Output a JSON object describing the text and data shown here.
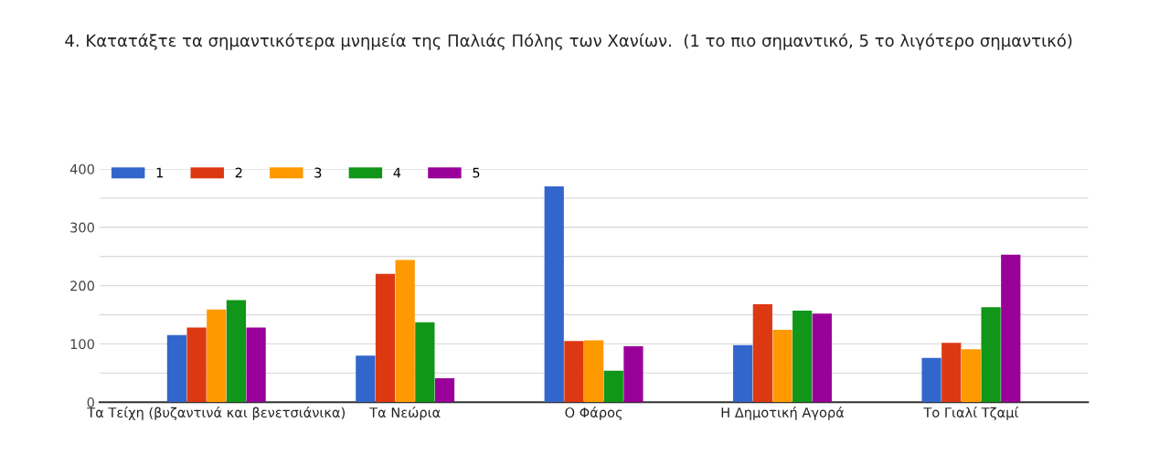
{
  "chart_data": {
    "type": "bar",
    "title": "4. Κατατάξτε τα σημαντικότερα μνημεία της Παλιάς Πόλης των Χανίων.  (1 το πιο σημαντικό, 5 το λιγότερο σημαντικό)",
    "categories": [
      "Τα Τείχη (βυζαντινά και βενετσιάνικα)",
      "Τα Νεώρια",
      "Ο Φάρος",
      "Η Δημοτική Αγορά",
      "Το Γιαλί Τζαμί"
    ],
    "series": [
      {
        "name": "1",
        "color": "#3366cc",
        "values": [
          115,
          80,
          370,
          98,
          76
        ]
      },
      {
        "name": "2",
        "color": "#dc3912",
        "values": [
          128,
          220,
          105,
          168,
          102
        ]
      },
      {
        "name": "3",
        "color": "#ff9900",
        "values": [
          159,
          244,
          106,
          124,
          91
        ]
      },
      {
        "name": "4",
        "color": "#109618",
        "values": [
          175,
          137,
          54,
          157,
          163
        ]
      },
      {
        "name": "5",
        "color": "#990099",
        "values": [
          128,
          41,
          96,
          152,
          253
        ]
      }
    ],
    "ylim": [
      0,
      400
    ],
    "yticks": [
      0,
      {
        "value": 50,
        "label": null
      },
      100,
      {
        "value": 150,
        "label": null
      },
      200,
      {
        "value": 250,
        "label": null
      },
      300,
      {
        "value": 350,
        "label": null
      },
      400
    ],
    "grid": "y",
    "legend": "top left"
  }
}
